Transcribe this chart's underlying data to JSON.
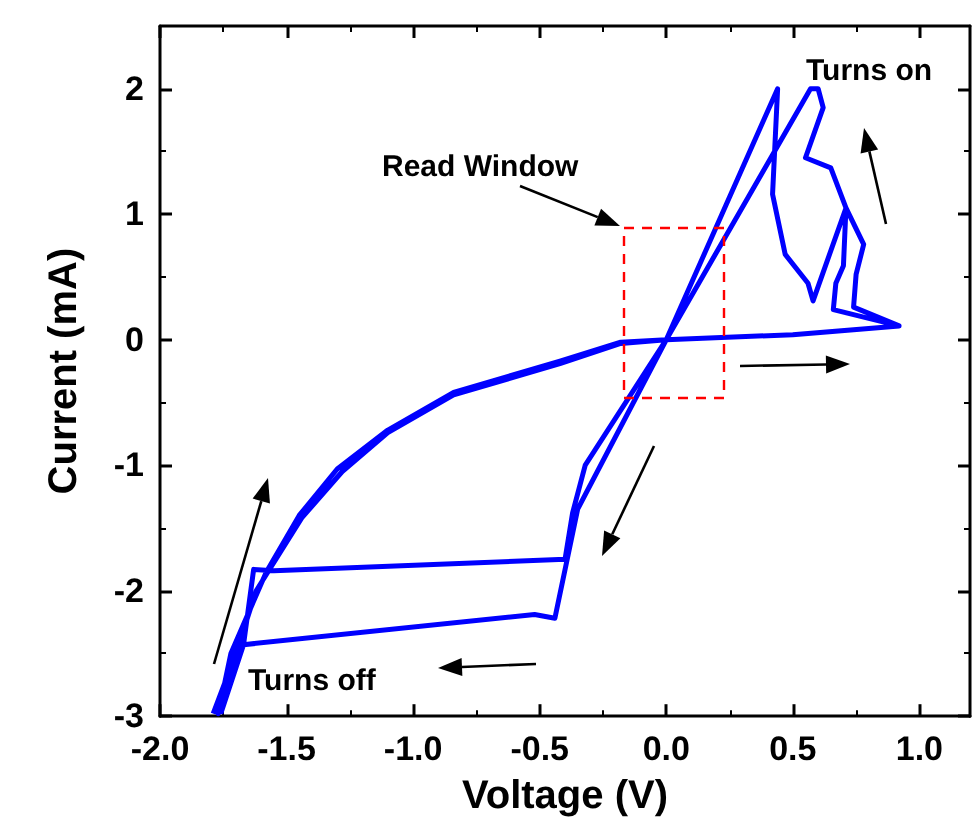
{
  "chart_data": {
    "type": "line",
    "xlabel": "Voltage (V)",
    "ylabel": "Current (mA)",
    "annotations": [
      "Read Window",
      "Turns on",
      "Turns off"
    ],
    "series": [
      {
        "color": "#0000ff",
        "x": [
          -1.79,
          -1.7,
          -1.62,
          -1.44,
          -1.28,
          -1.1,
          -0.84,
          -0.42,
          -0.18,
          0,
          0.5,
          0.92,
          0.66,
          0.67,
          0.7,
          0.71,
          0.65,
          0.55,
          0.62,
          0.6,
          0.57,
          0,
          -0.32,
          -0.37,
          -0.4,
          -1.55,
          -1.63,
          -1.67,
          -1.77,
          -1.72,
          -1.58,
          -1.45,
          -1.3,
          -1.1,
          -0.84,
          -0.42,
          -0.18,
          0,
          0.5,
          0.92,
          0.74,
          0.75,
          0.78,
          0.71,
          0.58,
          0.56,
          0.47,
          0.42,
          0.44,
          0,
          -0.35,
          -0.44,
          -0.52,
          -1.67,
          -1.76
        ],
        "values": [
          -2.98,
          -2.5,
          -2.0,
          -1.42,
          -1.05,
          -0.74,
          -0.44,
          -0.19,
          -0.03,
          0,
          0.04,
          0.11,
          0.24,
          0.45,
          0.59,
          1.05,
          1.37,
          1.45,
          1.85,
          2.0,
          2.0,
          0,
          -1.0,
          -1.38,
          -1.75,
          -1.84,
          -1.83,
          -2.43,
          -2.98,
          -2.5,
          -1.85,
          -1.4,
          -1.03,
          -0.72,
          -0.42,
          -0.17,
          -0.02,
          0,
          0.04,
          0.11,
          0.26,
          0.52,
          0.76,
          1.05,
          0.31,
          0.45,
          0.68,
          1.16,
          2.0,
          0,
          -1.35,
          -2.22,
          -2.19,
          -2.43,
          -2.98
        ]
      }
    ],
    "xlim": [
      -2,
      1.2
    ],
    "ylim": [
      -3,
      2.5
    ],
    "xticks": [
      {
        "value": -2,
        "label": "-2.0"
      },
      {
        "value": -1.5,
        "label": "-1.5"
      },
      {
        "value": -1,
        "label": "-1.0"
      },
      {
        "value": -0.5,
        "label": "-0.5"
      },
      {
        "value": 0,
        "label": "0.0"
      },
      {
        "value": 0.5,
        "label": "0.5"
      },
      {
        "value": 1,
        "label": "1.0"
      }
    ],
    "yticks": [
      -3,
      -2,
      -1,
      0,
      1,
      2
    ],
    "grid": false,
    "marker": "none",
    "line_style": "solid"
  }
}
